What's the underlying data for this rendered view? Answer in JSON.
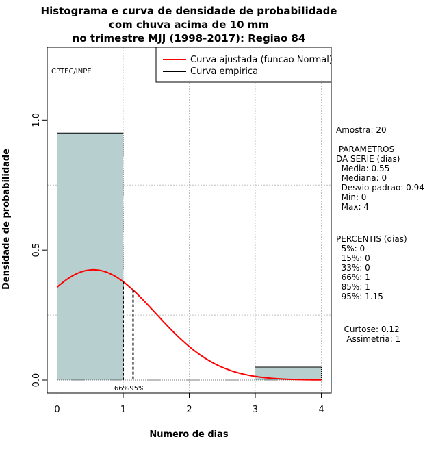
{
  "chart_data": {
    "type": "bar",
    "title": [
      "Histograma e curva de densidade de probabilidade",
      "com chuva acima de 10 mm",
      "no trimestre MJJ (1998-2017): Regiao 84"
    ],
    "xlabel": "Numero de dias",
    "ylabel": "Densidade de probabilidade",
    "xlim": [
      -0.15,
      4.15
    ],
    "ylim": [
      -0.05,
      1.28
    ],
    "x_ticks": [
      "0",
      "1",
      "2",
      "3",
      "4"
    ],
    "y_ticks": [
      "0.0",
      "0.5",
      "1.0"
    ],
    "grid": true,
    "credit": "CPTEC/INPE",
    "histogram": [
      {
        "x0": 0,
        "x1": 1,
        "density": 0.95
      },
      {
        "x0": 1,
        "x1": 2,
        "density": 0.0
      },
      {
        "x0": 2,
        "x1": 3,
        "density": 0.0
      },
      {
        "x0": 3,
        "x1": 4,
        "density": 0.05
      }
    ],
    "normal_fit": {
      "mean": 0.55,
      "sd": 0.94,
      "x_from": 0,
      "x_to": 4
    },
    "percentile_lines": [
      {
        "x": 1.0,
        "label": "66%"
      },
      {
        "x": 1.15,
        "label": "95%"
      }
    ],
    "series": [
      {
        "name": "Curva ajustada (funcao Normal)",
        "color": "#ff0000"
      },
      {
        "name": "Curva empirica",
        "color": "#000000"
      }
    ],
    "legend_position": "top-right",
    "bar_color": "#b7cfcf"
  },
  "side_panel": {
    "amostra": "Amostra: 20",
    "parametros": " PARAMETROS\nDA SERIE (dias)\n  Media: 0.55\n  Mediana: 0\n  Desvio padrao: 0.94\n  Min: 0\n  Max: 4",
    "percentis": "PERCENTIS (dias)\n  5%: 0\n  15%: 0\n  33%: 0\n  66%: 1\n  85%: 1\n  95%: 1.15",
    "curtose": "   Curtose: 0.12\n    Assimetria: 1"
  }
}
